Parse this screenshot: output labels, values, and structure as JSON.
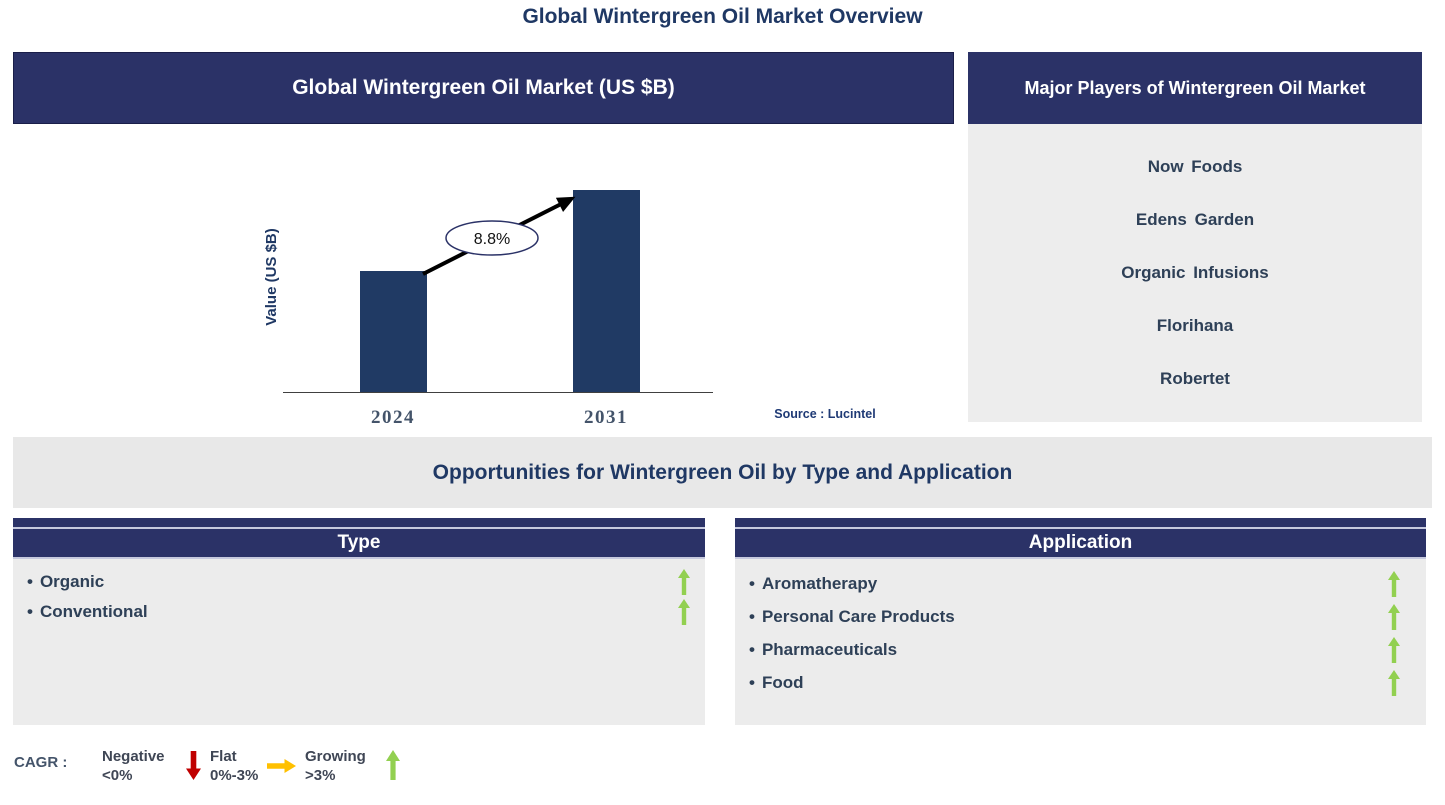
{
  "page": {
    "title": "Global Wintergreen Oil Market Overview"
  },
  "colors": {
    "navy": "#2b3267",
    "bar_navy": "#203a64",
    "title_navy": "#1f3864",
    "item_text": "#2e4057",
    "growing_green": "#92d050",
    "negative_red": "#c00000",
    "flat_orange": "#ffc000",
    "panel_gray": "#ececec"
  },
  "chart_data": {
    "type": "bar",
    "title": "Global Wintergreen Oil Market (US $B)",
    "ylabel": "Value (US $B)",
    "xlabel": "",
    "categories": [
      "2024",
      "2031"
    ],
    "values_norm": [
      0.6,
      1.0
    ],
    "axis_values_labeled": false,
    "annotation": "8.8%",
    "annotation_meaning": "CAGR 2024-2031",
    "source": "Source : Lucintel",
    "bar_color": "#203a64",
    "grid": false,
    "legend": false
  },
  "major_players": {
    "header": "Major Players of Wintergreen Oil Market",
    "items": [
      "Now Foods",
      "Edens Garden",
      "Organic Infusions",
      "Florihana",
      "Robertet"
    ]
  },
  "opportunities": {
    "header": "Opportunities for Wintergreen Oil by Type and Application",
    "bullet": "•",
    "type_panel": {
      "header": "Type",
      "items": [
        {
          "label": "Organic",
          "trend": "growing"
        },
        {
          "label": "Conventional",
          "trend": "growing"
        }
      ]
    },
    "application_panel": {
      "header": "Application",
      "items": [
        {
          "label": "Aromatherapy",
          "trend": "growing"
        },
        {
          "label": "Personal Care Products",
          "trend": "growing"
        },
        {
          "label": "Pharmaceuticals",
          "trend": "growing"
        },
        {
          "label": "Food",
          "trend": "growing"
        }
      ]
    }
  },
  "cagr_legend": {
    "label": "CAGR :",
    "entries": [
      {
        "name": "Negative",
        "range": "<0%",
        "direction": "down",
        "color": "#c00000"
      },
      {
        "name": "Flat",
        "range": "0%-3%",
        "direction": "right",
        "color": "#ffc000"
      },
      {
        "name": "Growing",
        "range": ">3%",
        "direction": "up",
        "color": "#92d050"
      }
    ]
  }
}
